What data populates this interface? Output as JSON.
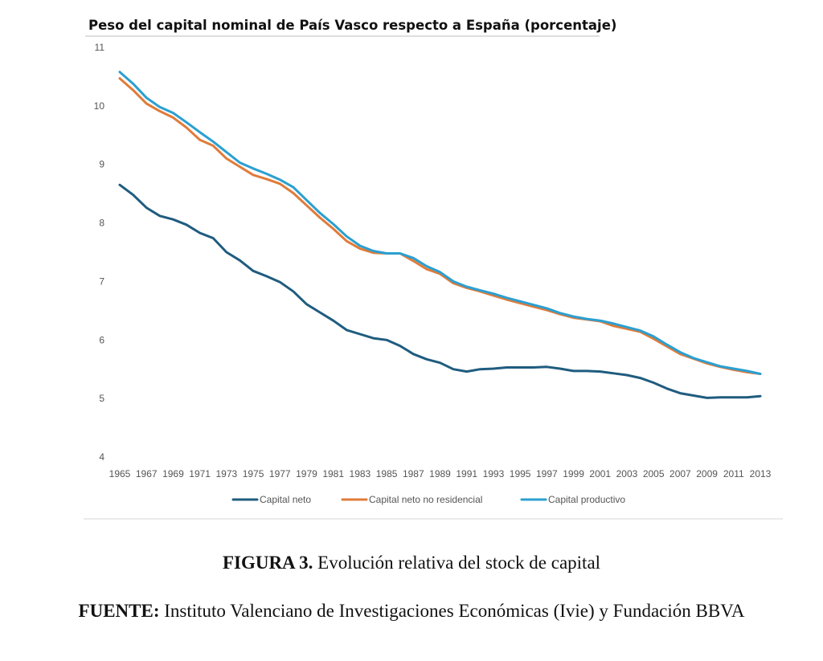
{
  "chart_data": {
    "type": "line",
    "title": "Peso del capital nominal de País Vasco respecto a España (porcentaje)",
    "xlabel": "",
    "ylabel": "",
    "ylim": [
      4,
      11
    ],
    "yticks": [
      "4",
      "5",
      "6",
      "7",
      "8",
      "9",
      "10",
      "11"
    ],
    "x": [
      1965,
      1966,
      1967,
      1968,
      1969,
      1970,
      1971,
      1972,
      1973,
      1974,
      1975,
      1976,
      1977,
      1978,
      1979,
      1980,
      1981,
      1982,
      1983,
      1984,
      1985,
      1986,
      1987,
      1988,
      1989,
      1990,
      1991,
      1992,
      1993,
      1994,
      1995,
      1996,
      1997,
      1998,
      1999,
      2000,
      2001,
      2002,
      2003,
      2004,
      2005,
      2006,
      2007,
      2008,
      2009,
      2010,
      2011,
      2012,
      2013
    ],
    "xtick_labels": [
      "1965",
      "1967",
      "1969",
      "1971",
      "1973",
      "1975",
      "1977",
      "1979",
      "1981",
      "1983",
      "1985",
      "1987",
      "1989",
      "1991",
      "1993",
      "1995",
      "1997",
      "1999",
      "2001",
      "2003",
      "2005",
      "2007",
      "2009",
      "2011",
      "2013"
    ],
    "grid": false,
    "legend_position": "bottom",
    "series": [
      {
        "name": "Capital neto",
        "color": "#1f5c7f",
        "values": [
          8.65,
          8.48,
          8.26,
          8.12,
          8.06,
          7.97,
          7.83,
          7.74,
          7.5,
          7.36,
          7.18,
          7.09,
          6.99,
          6.83,
          6.61,
          6.47,
          6.33,
          6.17,
          6.1,
          6.03,
          6.0,
          5.9,
          5.76,
          5.67,
          5.61,
          5.5,
          5.46,
          5.5,
          5.51,
          5.53,
          5.53,
          5.53,
          5.54,
          5.51,
          5.47,
          5.47,
          5.46,
          5.43,
          5.4,
          5.35,
          5.27,
          5.17,
          5.09,
          5.05,
          5.01,
          5.02,
          5.02,
          5.02,
          5.04
        ]
      },
      {
        "name": "Capital neto no residencial",
        "color": "#e07b39",
        "values": [
          10.47,
          10.27,
          10.04,
          9.91,
          9.8,
          9.63,
          9.42,
          9.32,
          9.1,
          8.96,
          8.82,
          8.75,
          8.67,
          8.51,
          8.3,
          8.09,
          7.9,
          7.69,
          7.56,
          7.49,
          7.48,
          7.48,
          7.35,
          7.21,
          7.13,
          6.97,
          6.89,
          6.83,
          6.76,
          6.69,
          6.63,
          6.57,
          6.51,
          6.44,
          6.38,
          6.35,
          6.32,
          6.24,
          6.19,
          6.14,
          6.02,
          5.89,
          5.76,
          5.68,
          5.6,
          5.54,
          5.49,
          5.45,
          5.42
        ]
      },
      {
        "name": "Capital productivo",
        "color": "#2b9fd1",
        "values": [
          10.58,
          10.38,
          10.14,
          9.98,
          9.88,
          9.72,
          9.55,
          9.39,
          9.21,
          9.03,
          8.93,
          8.84,
          8.74,
          8.61,
          8.39,
          8.17,
          7.98,
          7.77,
          7.61,
          7.52,
          7.48,
          7.48,
          7.4,
          7.26,
          7.16,
          7.0,
          6.91,
          6.85,
          6.79,
          6.72,
          6.66,
          6.6,
          6.54,
          6.46,
          6.4,
          6.36,
          6.33,
          6.28,
          6.22,
          6.16,
          6.06,
          5.92,
          5.79,
          5.69,
          5.62,
          5.55,
          5.51,
          5.47,
          5.42
        ]
      }
    ]
  },
  "captions": {
    "figure_label": "FIGURA 3.",
    "figure_text": " Evolución relativa del stock de capital",
    "source_label": "FUENTE:",
    "source_text": " Instituto Valenciano de Investigaciones Económicas (Ivie) y Fundación BBVA"
  }
}
